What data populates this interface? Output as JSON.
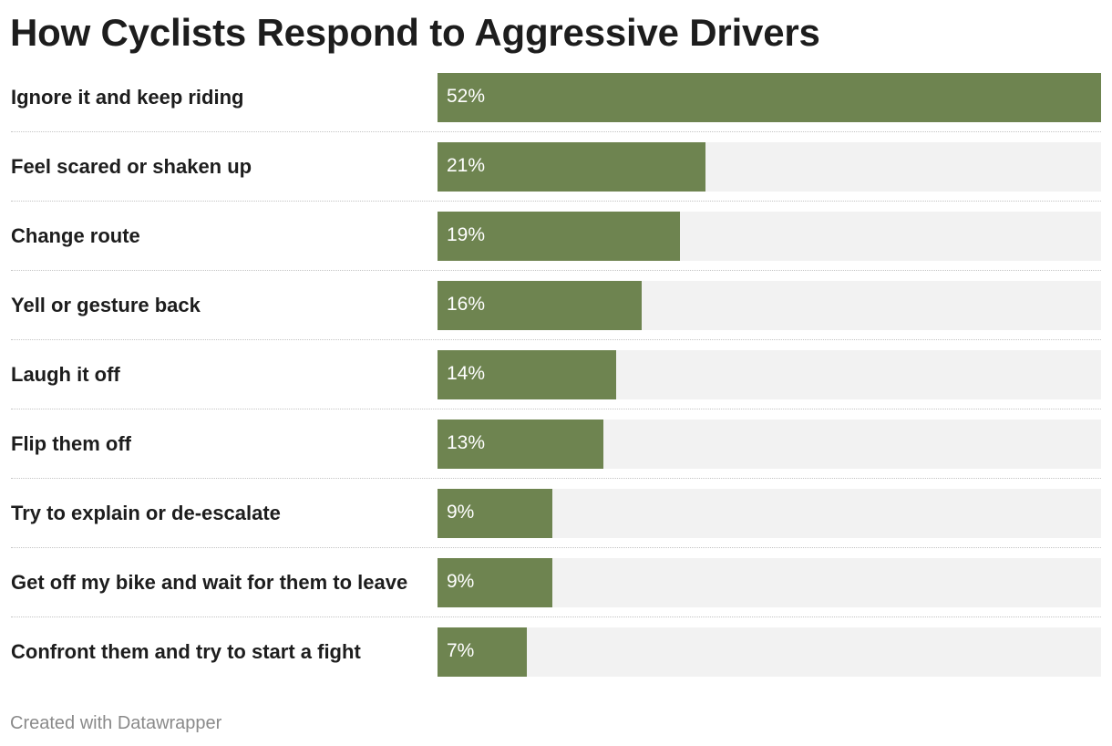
{
  "chart_data": {
    "type": "bar",
    "orientation": "horizontal",
    "title": "How Cyclists Respond to Aggressive Drivers",
    "categories": [
      "Ignore it and keep riding",
      "Feel scared or shaken up",
      "Change route",
      "Yell or gesture back",
      "Laugh it off",
      "Flip them off",
      "Try to explain or de-escalate",
      "Get off my bike and wait for them to leave",
      "Confront them and try to start a fight"
    ],
    "values": [
      52,
      21,
      19,
      16,
      14,
      13,
      9,
      9,
      7
    ],
    "value_labels": [
      "52%",
      "21%",
      "19%",
      "16%",
      "14%",
      "13%",
      "9%",
      "9%",
      "7%"
    ],
    "unit": "%",
    "xlim": [
      0,
      52
    ],
    "grid": false,
    "legend": "none",
    "colors": {
      "bar": "#6e8450",
      "track": "#f2f2f2"
    }
  },
  "footer": {
    "credit": "Created with Datawrapper"
  }
}
